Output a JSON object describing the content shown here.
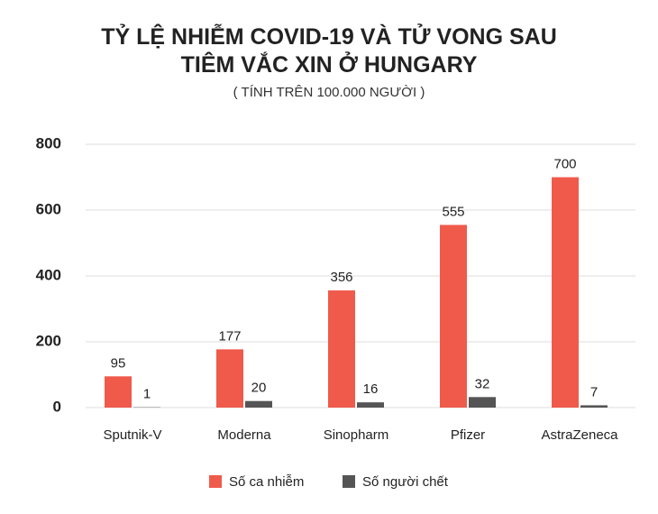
{
  "chart_data": {
    "type": "bar",
    "title": "TỶ LỆ NHIỄM COVID-19 VÀ TỬ VONG SAU TIÊM VẮC XIN Ở HUNGARY",
    "subtitle": "( TÍNH TRÊN 100.000 NGƯỜI )",
    "categories": [
      "Sputnik-V",
      "Moderna",
      "Sinopharm",
      "Pfizer",
      "AstraZeneca"
    ],
    "series": [
      {
        "name": "Số ca nhiễm",
        "color": "#ef5a4b",
        "values": [
          95,
          177,
          356,
          555,
          700
        ]
      },
      {
        "name": "Số người chết",
        "color": "#555555",
        "values": [
          1,
          20,
          16,
          32,
          7
        ]
      }
    ],
    "ylim": [
      0,
      800
    ],
    "yticks": [
      0,
      200,
      400,
      600,
      800
    ],
    "grid": true,
    "legend": "bottom"
  }
}
